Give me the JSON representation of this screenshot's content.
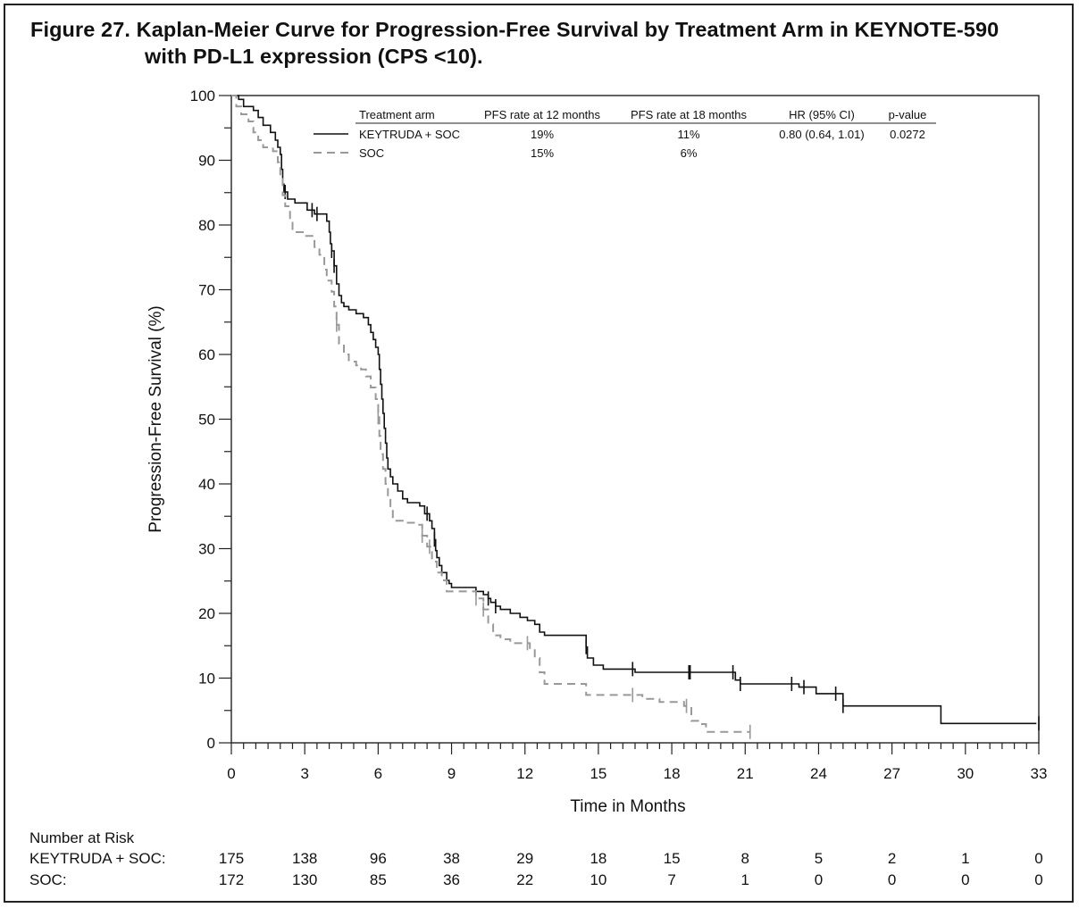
{
  "title_line1": "Figure 27. Kaplan-Meier Curve for Progression-Free Survival by Treatment Arm in KEYNOTE-590",
  "title_line2": "with PD-L1 expression (CPS <10).",
  "chart_data": {
    "type": "line",
    "subtype": "kaplan-meier step",
    "xlabel": "Time in Months",
    "ylabel": "Progression-Free Survival (%)",
    "xlim": [
      0,
      33
    ],
    "ylim": [
      0,
      100
    ],
    "xticks": [
      0,
      3,
      6,
      9,
      12,
      15,
      18,
      21,
      24,
      27,
      30,
      33
    ],
    "yticks": [
      0,
      10,
      20,
      30,
      40,
      50,
      60,
      70,
      80,
      90,
      100
    ],
    "legend": {
      "placement": "top-right inside plot",
      "headers": [
        "Treatment arm",
        "PFS rate at 12 months",
        "PFS rate at 18 months",
        "HR (95% CI)",
        "p-value"
      ],
      "rows": [
        {
          "arm": "KEYTRUDA + SOC",
          "pfs12": "19%",
          "pfs18": "11%",
          "hr": "0.80 (0.64, 1.01)",
          "p": "0.0272"
        },
        {
          "arm": "SOC",
          "pfs12": "15%",
          "pfs18": "6%",
          "hr": "",
          "p": ""
        }
      ]
    },
    "series": [
      {
        "name": "KEYTRUDA + SOC",
        "color": "#111111",
        "dash": "solid",
        "points": [
          [
            0,
            100
          ],
          [
            0.3,
            99.4
          ],
          [
            0.5,
            98.3
          ],
          [
            0.9,
            97.7
          ],
          [
            1.1,
            96.6
          ],
          [
            1.3,
            95.4
          ],
          [
            1.6,
            94.3
          ],
          [
            1.8,
            93.1
          ],
          [
            1.9,
            92.0
          ],
          [
            2.0,
            90.9
          ],
          [
            2.05,
            88.6
          ],
          [
            2.1,
            86.3
          ],
          [
            2.15,
            85.1
          ],
          [
            2.3,
            84.0
          ],
          [
            2.6,
            83.4
          ],
          [
            3.1,
            82.3
          ],
          [
            3.4,
            81.7
          ],
          [
            3.9,
            80.6
          ],
          [
            4.0,
            78.9
          ],
          [
            4.05,
            77.1
          ],
          [
            4.1,
            76.0
          ],
          [
            4.2,
            73.7
          ],
          [
            4.3,
            70.9
          ],
          [
            4.4,
            69.1
          ],
          [
            4.5,
            68.0
          ],
          [
            4.6,
            67.4
          ],
          [
            4.8,
            66.9
          ],
          [
            5.1,
            66.3
          ],
          [
            5.4,
            65.7
          ],
          [
            5.6,
            64.6
          ],
          [
            5.7,
            63.4
          ],
          [
            5.8,
            62.3
          ],
          [
            5.9,
            61.1
          ],
          [
            6.0,
            60.0
          ],
          [
            6.05,
            57.7
          ],
          [
            6.1,
            55.4
          ],
          [
            6.15,
            53.1
          ],
          [
            6.2,
            50.9
          ],
          [
            6.25,
            48.6
          ],
          [
            6.3,
            46.3
          ],
          [
            6.35,
            44.0
          ],
          [
            6.4,
            42.3
          ],
          [
            6.5,
            41.1
          ],
          [
            6.6,
            40.0
          ],
          [
            6.8,
            38.9
          ],
          [
            7.0,
            37.7
          ],
          [
            7.2,
            37.1
          ],
          [
            7.7,
            36.6
          ],
          [
            7.9,
            35.4
          ],
          [
            8.1,
            34.3
          ],
          [
            8.2,
            33.1
          ],
          [
            8.3,
            31.4
          ],
          [
            8.35,
            29.7
          ],
          [
            8.4,
            28.6
          ],
          [
            8.5,
            27.4
          ],
          [
            8.6,
            26.3
          ],
          [
            8.8,
            25.1
          ],
          [
            8.9,
            24.6
          ],
          [
            9.0,
            24.0
          ],
          [
            10.0,
            23.4
          ],
          [
            10.3,
            22.9
          ],
          [
            10.5,
            22.3
          ],
          [
            10.6,
            21.7
          ],
          [
            10.8,
            21.1
          ],
          [
            11.0,
            20.6
          ],
          [
            11.4,
            20.0
          ],
          [
            11.8,
            19.4
          ],
          [
            12.1,
            18.9
          ],
          [
            12.4,
            18.3
          ],
          [
            12.6,
            17.1
          ],
          [
            12.8,
            16.6
          ],
          [
            14.5,
            14.8
          ],
          [
            14.55,
            13.1
          ],
          [
            14.8,
            12.0
          ],
          [
            15.2,
            11.4
          ],
          [
            16.5,
            10.9
          ],
          [
            20.6,
            9.7
          ],
          [
            20.8,
            9.1
          ],
          [
            23.2,
            8.6
          ],
          [
            23.9,
            7.6
          ],
          [
            25.0,
            5.7
          ],
          [
            29.0,
            3.0
          ],
          [
            32.9,
            3.0
          ]
        ]
      },
      {
        "name": "SOC",
        "color": "#999999",
        "dash": "dashed",
        "points": [
          [
            0,
            100
          ],
          [
            0.2,
            98.3
          ],
          [
            0.4,
            97.1
          ],
          [
            0.7,
            96.0
          ],
          [
            0.9,
            94.3
          ],
          [
            1.1,
            93.1
          ],
          [
            1.3,
            92.0
          ],
          [
            1.7,
            91.4
          ],
          [
            1.9,
            89.7
          ],
          [
            2.0,
            87.4
          ],
          [
            2.1,
            84.6
          ],
          [
            2.2,
            82.9
          ],
          [
            2.4,
            80.6
          ],
          [
            2.5,
            78.9
          ],
          [
            3.0,
            78.3
          ],
          [
            3.4,
            76.6
          ],
          [
            3.6,
            75.4
          ],
          [
            3.8,
            73.1
          ],
          [
            3.9,
            71.4
          ],
          [
            4.1,
            69.7
          ],
          [
            4.2,
            67.4
          ],
          [
            4.3,
            64.6
          ],
          [
            4.4,
            61.7
          ],
          [
            4.6,
            60.0
          ],
          [
            4.8,
            58.9
          ],
          [
            5.1,
            58.3
          ],
          [
            5.3,
            57.7
          ],
          [
            5.5,
            56.6
          ],
          [
            5.7,
            54.9
          ],
          [
            5.9,
            53.1
          ],
          [
            6.0,
            50.3
          ],
          [
            6.05,
            47.4
          ],
          [
            6.1,
            44.6
          ],
          [
            6.2,
            42.3
          ],
          [
            6.3,
            40.0
          ],
          [
            6.4,
            37.7
          ],
          [
            6.5,
            36.0
          ],
          [
            6.6,
            34.3
          ],
          [
            7.0,
            34.0
          ],
          [
            7.6,
            33.7
          ],
          [
            7.8,
            32.0
          ],
          [
            8.0,
            30.3
          ],
          [
            8.2,
            28.0
          ],
          [
            8.4,
            26.3
          ],
          [
            8.6,
            25.1
          ],
          [
            8.8,
            23.4
          ],
          [
            9.4,
            23.4
          ],
          [
            10.0,
            22.3
          ],
          [
            10.3,
            20.6
          ],
          [
            10.5,
            18.3
          ],
          [
            10.7,
            16.6
          ],
          [
            11.0,
            16.0
          ],
          [
            11.4,
            15.4
          ],
          [
            12.2,
            14.3
          ],
          [
            12.4,
            13.1
          ],
          [
            12.6,
            10.9
          ],
          [
            12.8,
            9.1
          ],
          [
            14.5,
            7.4
          ],
          [
            16.0,
            7.4
          ],
          [
            16.8,
            6.8
          ],
          [
            17.5,
            6.3
          ],
          [
            18.5,
            5.7
          ],
          [
            18.8,
            3.4
          ],
          [
            19.2,
            2.9
          ],
          [
            19.4,
            1.7
          ],
          [
            21.2,
            1.7
          ]
        ]
      }
    ],
    "censor_marks": {
      "KEYTRUDA + SOC": [
        2.2,
        3.3,
        3.5,
        4.1,
        4.2,
        8.0,
        8.3,
        10.5,
        10.8,
        14.5,
        16.4,
        18.7,
        18.75,
        20.5,
        20.8,
        22.9,
        23.4,
        24.7,
        25.0,
        33.0
      ],
      "SOC": [
        4.3,
        6.0,
        7.8,
        8.1,
        10.0,
        10.3,
        12.1,
        16.4,
        18.6,
        21.2
      ]
    },
    "risk_table": {
      "label": "Number at Risk",
      "time_points": [
        0,
        3,
        6,
        9,
        12,
        15,
        18,
        21,
        24,
        27,
        30,
        33
      ],
      "rows": [
        {
          "label": "KEYTRUDA + SOC:",
          "values": [
            175,
            138,
            96,
            38,
            29,
            18,
            15,
            8,
            5,
            2,
            1,
            0
          ]
        },
        {
          "label": "SOC:",
          "values": [
            172,
            130,
            85,
            36,
            22,
            10,
            7,
            1,
            0,
            0,
            0,
            0
          ]
        }
      ]
    }
  }
}
